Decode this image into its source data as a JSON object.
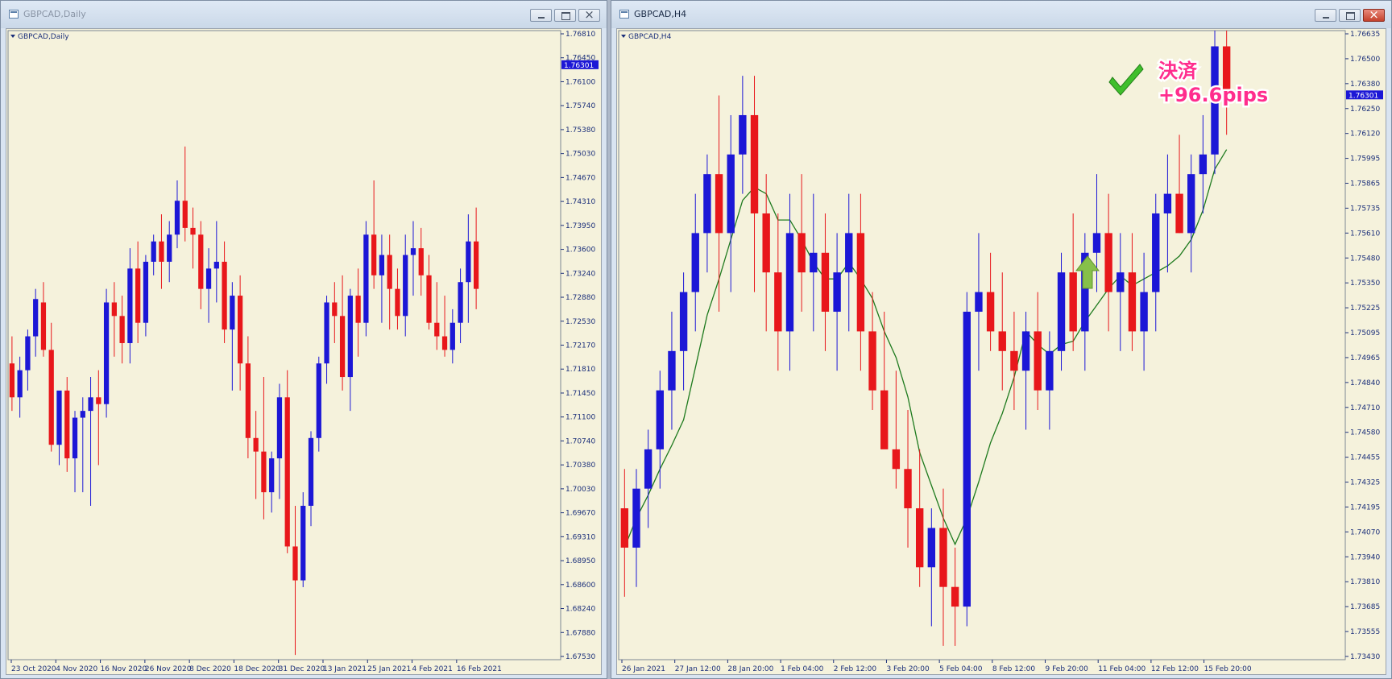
{
  "windows": {
    "left": {
      "title": "GBPCAD,Daily",
      "chart_label": "GBPCAD,Daily",
      "buttons": {
        "minimize": "minimize",
        "maximize": "maximize",
        "close": "close"
      }
    },
    "right": {
      "title": "GBPCAD,H4",
      "chart_label": "GBPCAD,H4",
      "buttons": {
        "minimize": "minimize",
        "maximize": "maximize",
        "close": "close"
      }
    }
  },
  "colors": {
    "bull": "#1c17d6",
    "bear": "#e8171b",
    "background": "#f5f2dc",
    "ma": "#1e7a1e",
    "current_price_tag": "#1c17d6"
  },
  "icons": {
    "entry_marker": "green-up-arrow-icon",
    "exit_marker": "green-checkmark-icon"
  },
  "annotation": {
    "line1": "決済",
    "line2": "+96.6pips"
  },
  "chart_data": [
    {
      "type": "candlestick",
      "title": "GBPCAD,Daily",
      "ylim": [
        1.6753,
        1.7681
      ],
      "y_ticks": [
        "1.76810",
        "1.76450",
        "1.76100",
        "1.75740",
        "1.75380",
        "1.75030",
        "1.74670",
        "1.74310",
        "1.73950",
        "1.73600",
        "1.73240",
        "1.72880",
        "1.72530",
        "1.72170",
        "1.71810",
        "1.71450",
        "1.71100",
        "1.70740",
        "1.70380",
        "1.70030",
        "1.69670",
        "1.69310",
        "1.68950",
        "1.68600",
        "1.68240",
        "1.67880",
        "1.67530"
      ],
      "x_tick_labels": [
        "23 Oct 2020",
        "4 Nov 2020",
        "16 Nov 2020",
        "26 Nov 2020",
        "8 Dec 2020",
        "18 Dec 2020",
        "31 Dec 2020",
        "13 Jan 2021",
        "25 Jan 2021",
        "4 Feb 2021",
        "16 Feb 2021"
      ],
      "current_price": "1.76301",
      "candles_ohlc": [
        [
          1.719,
          1.723,
          1.712,
          1.714
        ],
        [
          1.714,
          1.72,
          1.711,
          1.718
        ],
        [
          1.718,
          1.724,
          1.715,
          1.723
        ],
        [
          1.723,
          1.73,
          1.72,
          1.7285
        ],
        [
          1.728,
          1.731,
          1.72,
          1.721
        ],
        [
          1.721,
          1.725,
          1.706,
          1.707
        ],
        [
          1.707,
          1.712,
          1.704,
          1.715
        ],
        [
          1.715,
          1.717,
          1.703,
          1.705
        ],
        [
          1.705,
          1.712,
          1.7,
          1.711
        ],
        [
          1.711,
          1.714,
          1.7,
          1.712
        ],
        [
          1.712,
          1.717,
          1.698,
          1.714
        ],
        [
          1.714,
          1.718,
          1.704,
          1.713
        ],
        [
          1.713,
          1.73,
          1.711,
          1.728
        ],
        [
          1.728,
          1.731,
          1.72,
          1.726
        ],
        [
          1.726,
          1.729,
          1.719,
          1.722
        ],
        [
          1.722,
          1.736,
          1.719,
          1.733
        ],
        [
          1.733,
          1.737,
          1.722,
          1.725
        ],
        [
          1.725,
          1.735,
          1.723,
          1.734
        ],
        [
          1.734,
          1.738,
          1.732,
          1.737
        ],
        [
          1.737,
          1.741,
          1.73,
          1.734
        ],
        [
          1.734,
          1.74,
          1.731,
          1.738
        ],
        [
          1.738,
          1.746,
          1.736,
          1.743
        ],
        [
          1.743,
          1.751,
          1.737,
          1.739
        ],
        [
          1.739,
          1.742,
          1.733,
          1.738
        ],
        [
          1.738,
          1.74,
          1.727,
          1.73
        ],
        [
          1.73,
          1.736,
          1.725,
          1.733
        ],
        [
          1.733,
          1.74,
          1.728,
          1.734
        ],
        [
          1.734,
          1.737,
          1.722,
          1.724
        ],
        [
          1.724,
          1.731,
          1.715,
          1.729
        ],
        [
          1.729,
          1.732,
          1.715,
          1.719
        ],
        [
          1.719,
          1.723,
          1.705,
          1.708
        ],
        [
          1.708,
          1.712,
          1.699,
          1.706
        ],
        [
          1.706,
          1.717,
          1.696,
          1.7
        ],
        [
          1.7,
          1.706,
          1.697,
          1.705
        ],
        [
          1.705,
          1.716,
          1.699,
          1.714
        ],
        [
          1.714,
          1.718,
          1.691,
          1.692
        ],
        [
          1.692,
          1.698,
          1.676,
          1.687
        ],
        [
          1.687,
          1.7,
          1.686,
          1.698
        ],
        [
          1.698,
          1.709,
          1.695,
          1.708
        ],
        [
          1.708,
          1.72,
          1.706,
          1.719
        ],
        [
          1.719,
          1.729,
          1.716,
          1.728
        ],
        [
          1.728,
          1.731,
          1.722,
          1.726
        ],
        [
          1.726,
          1.732,
          1.715,
          1.717
        ],
        [
          1.717,
          1.73,
          1.712,
          1.729
        ],
        [
          1.729,
          1.733,
          1.72,
          1.725
        ],
        [
          1.725,
          1.74,
          1.723,
          1.738
        ],
        [
          1.738,
          1.746,
          1.73,
          1.732
        ],
        [
          1.732,
          1.738,
          1.725,
          1.735
        ],
        [
          1.735,
          1.738,
          1.724,
          1.73
        ],
        [
          1.73,
          1.733,
          1.724,
          1.726
        ],
        [
          1.726,
          1.738,
          1.723,
          1.735
        ],
        [
          1.735,
          1.74,
          1.729,
          1.736
        ],
        [
          1.736,
          1.739,
          1.729,
          1.732
        ],
        [
          1.732,
          1.735,
          1.724,
          1.725
        ],
        [
          1.725,
          1.731,
          1.721,
          1.723
        ],
        [
          1.723,
          1.729,
          1.72,
          1.721
        ],
        [
          1.721,
          1.727,
          1.719,
          1.725
        ],
        [
          1.725,
          1.733,
          1.722,
          1.731
        ],
        [
          1.731,
          1.741,
          1.725,
          1.737
        ],
        [
          1.737,
          1.742,
          1.727,
          1.73
        ]
      ]
    },
    {
      "type": "candlestick",
      "title": "GBPCAD,H4",
      "ylim": [
        1.7343,
        1.7663
      ],
      "y_ticks": [
        "1.76635",
        "1.76500",
        "1.76380",
        "1.76250",
        "1.76120",
        "1.75995",
        "1.75865",
        "1.75735",
        "1.75610",
        "1.75480",
        "1.75350",
        "1.75225",
        "1.75095",
        "1.74965",
        "1.74840",
        "1.74710",
        "1.74580",
        "1.74455",
        "1.74325",
        "1.74195",
        "1.74070",
        "1.73940",
        "1.73810",
        "1.73685",
        "1.73555",
        "1.73430"
      ],
      "x_tick_labels": [
        "26 Jan 2021",
        "27 Jan 12:00",
        "28 Jan 20:00",
        "1 Feb 04:00",
        "2 Feb 12:00",
        "3 Feb 20:00",
        "5 Feb 04:00",
        "8 Feb 12:00",
        "9 Feb 20:00",
        "11 Feb 04:00",
        "12 Feb 12:00",
        "15 Feb 20:00"
      ],
      "current_price": "1.76301",
      "indicator": "moving-average",
      "candles_ohlc": [
        [
          1.742,
          1.744,
          1.7375,
          1.74
        ],
        [
          1.74,
          1.744,
          1.738,
          1.743
        ],
        [
          1.743,
          1.746,
          1.741,
          1.745
        ],
        [
          1.745,
          1.749,
          1.743,
          1.748
        ],
        [
          1.748,
          1.752,
          1.746,
          1.75
        ],
        [
          1.75,
          1.754,
          1.748,
          1.753
        ],
        [
          1.753,
          1.758,
          1.751,
          1.756
        ],
        [
          1.756,
          1.76,
          1.754,
          1.759
        ],
        [
          1.759,
          1.763,
          1.752,
          1.756
        ],
        [
          1.756,
          1.762,
          1.753,
          1.76
        ],
        [
          1.76,
          1.764,
          1.758,
          1.762
        ],
        [
          1.762,
          1.764,
          1.753,
          1.757
        ],
        [
          1.757,
          1.759,
          1.751,
          1.754
        ],
        [
          1.754,
          1.757,
          1.749,
          1.751
        ],
        [
          1.751,
          1.758,
          1.749,
          1.756
        ],
        [
          1.756,
          1.759,
          1.752,
          1.754
        ],
        [
          1.754,
          1.758,
          1.751,
          1.755
        ],
        [
          1.755,
          1.757,
          1.75,
          1.752
        ],
        [
          1.752,
          1.756,
          1.749,
          1.754
        ],
        [
          1.754,
          1.758,
          1.751,
          1.756
        ],
        [
          1.756,
          1.758,
          1.749,
          1.751
        ],
        [
          1.751,
          1.753,
          1.747,
          1.748
        ],
        [
          1.748,
          1.752,
          1.746,
          1.745
        ],
        [
          1.745,
          1.749,
          1.743,
          1.744
        ],
        [
          1.744,
          1.747,
          1.74,
          1.742
        ],
        [
          1.742,
          1.745,
          1.738,
          1.739
        ],
        [
          1.739,
          1.742,
          1.736,
          1.741
        ],
        [
          1.741,
          1.743,
          1.735,
          1.738
        ],
        [
          1.738,
          1.74,
          1.735,
          1.737
        ],
        [
          1.737,
          1.753,
          1.736,
          1.752
        ],
        [
          1.752,
          1.756,
          1.749,
          1.753
        ],
        [
          1.753,
          1.755,
          1.75,
          1.751
        ],
        [
          1.751,
          1.754,
          1.748,
          1.75
        ],
        [
          1.75,
          1.752,
          1.747,
          1.749
        ],
        [
          1.749,
          1.752,
          1.746,
          1.751
        ],
        [
          1.751,
          1.753,
          1.747,
          1.748
        ],
        [
          1.748,
          1.751,
          1.746,
          1.75
        ],
        [
          1.75,
          1.755,
          1.749,
          1.754
        ],
        [
          1.754,
          1.757,
          1.75,
          1.751
        ],
        [
          1.751,
          1.756,
          1.749,
          1.755
        ],
        [
          1.755,
          1.759,
          1.753,
          1.756
        ],
        [
          1.756,
          1.758,
          1.751,
          1.753
        ],
        [
          1.753,
          1.756,
          1.75,
          1.754
        ],
        [
          1.754,
          1.756,
          1.75,
          1.751
        ],
        [
          1.751,
          1.755,
          1.749,
          1.753
        ],
        [
          1.753,
          1.758,
          1.751,
          1.757
        ],
        [
          1.757,
          1.76,
          1.754,
          1.758
        ],
        [
          1.758,
          1.761,
          1.756,
          1.756
        ],
        [
          1.756,
          1.76,
          1.754,
          1.759
        ],
        [
          1.759,
          1.762,
          1.757,
          1.76
        ],
        [
          1.76,
          1.7663,
          1.759,
          1.7655
        ],
        [
          1.7655,
          1.7663,
          1.761,
          1.763
        ]
      ]
    }
  ]
}
